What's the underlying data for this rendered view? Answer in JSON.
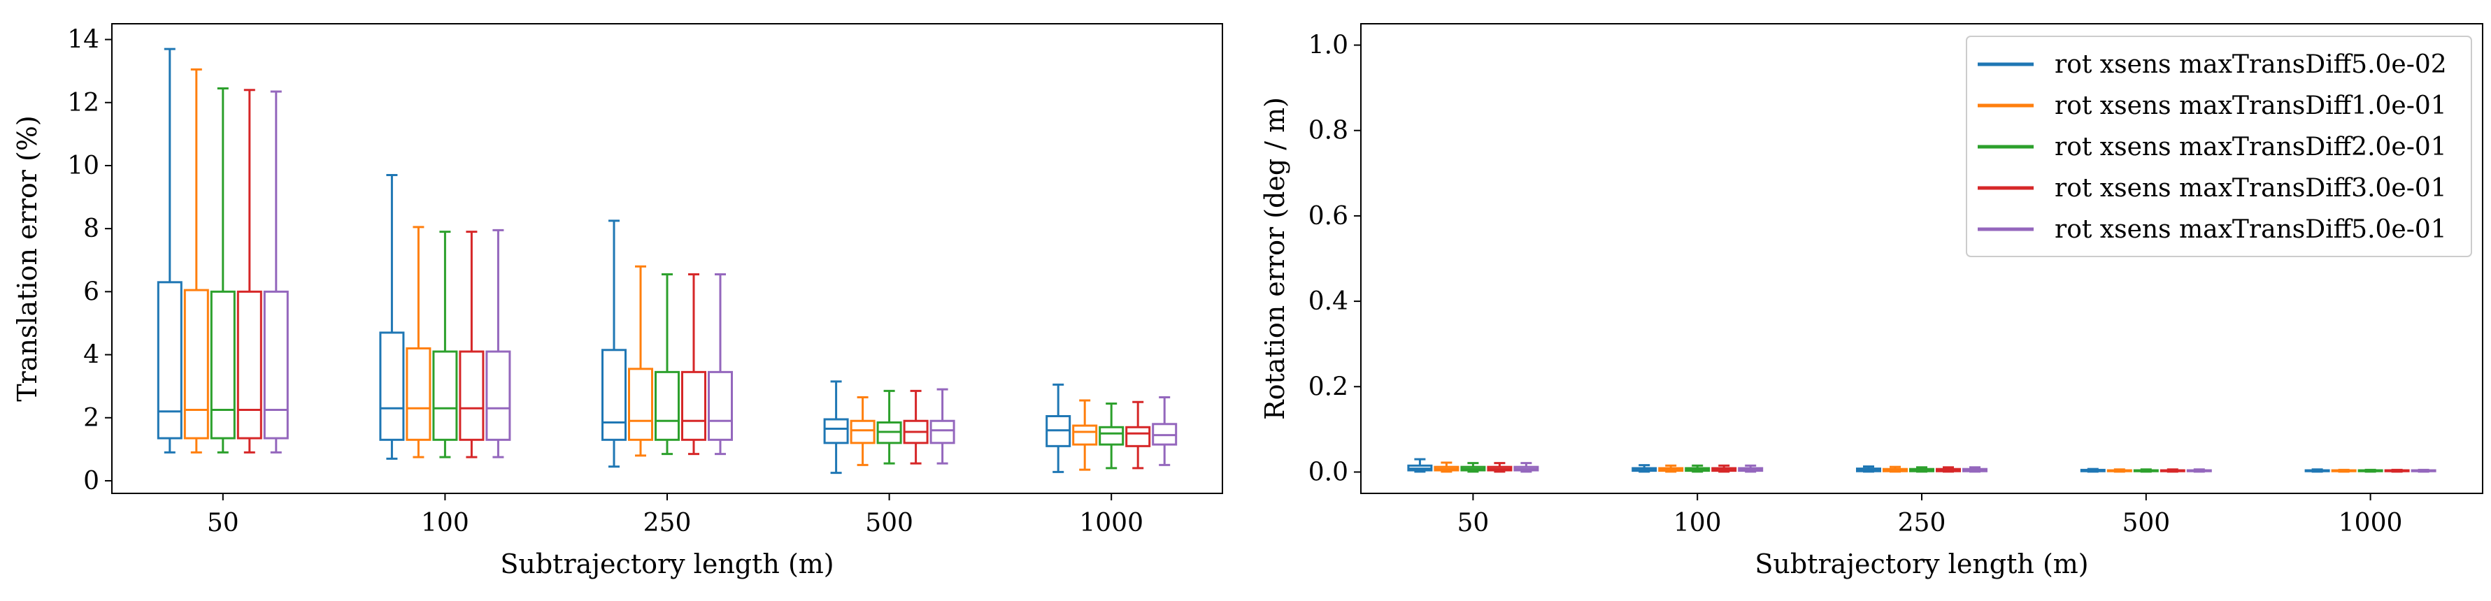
{
  "chart_data": [
    {
      "type": "box",
      "xlabel": "Subtrajectory length (m)",
      "ylabel": "Translation error (%)",
      "categories": [
        "50",
        "100",
        "250",
        "500",
        "1000"
      ],
      "ylim": [
        -0.4,
        14.5
      ],
      "yticks": [
        0,
        2,
        4,
        6,
        8,
        10,
        12,
        14
      ],
      "grid": false,
      "series": [
        {
          "color": "#1f77b4",
          "boxes": [
            {
              "whislo": 0.9,
              "q1": 1.35,
              "med": 2.2,
              "q3": 6.3,
              "whishi": 13.7
            },
            {
              "whislo": 0.7,
              "q1": 1.3,
              "med": 2.3,
              "q3": 4.7,
              "whishi": 9.7
            },
            {
              "whislo": 0.45,
              "q1": 1.3,
              "med": 1.85,
              "q3": 4.15,
              "whishi": 8.25
            },
            {
              "whislo": 0.25,
              "q1": 1.2,
              "med": 1.65,
              "q3": 1.95,
              "whishi": 3.15
            },
            {
              "whislo": 0.28,
              "q1": 1.1,
              "med": 1.6,
              "q3": 2.05,
              "whishi": 3.05
            }
          ]
        },
        {
          "color": "#ff7f0e",
          "boxes": [
            {
              "whislo": 0.9,
              "q1": 1.35,
              "med": 2.25,
              "q3": 6.05,
              "whishi": 13.05
            },
            {
              "whislo": 0.75,
              "q1": 1.3,
              "med": 2.3,
              "q3": 4.2,
              "whishi": 8.05
            },
            {
              "whislo": 0.8,
              "q1": 1.3,
              "med": 1.9,
              "q3": 3.55,
              "whishi": 6.8
            },
            {
              "whislo": 0.5,
              "q1": 1.2,
              "med": 1.6,
              "q3": 1.9,
              "whishi": 2.65
            },
            {
              "whislo": 0.35,
              "q1": 1.15,
              "med": 1.55,
              "q3": 1.75,
              "whishi": 2.55
            }
          ]
        },
        {
          "color": "#2ca02c",
          "boxes": [
            {
              "whislo": 0.9,
              "q1": 1.35,
              "med": 2.25,
              "q3": 6.0,
              "whishi": 12.45
            },
            {
              "whislo": 0.75,
              "q1": 1.3,
              "med": 2.3,
              "q3": 4.1,
              "whishi": 7.9
            },
            {
              "whislo": 0.85,
              "q1": 1.3,
              "med": 1.9,
              "q3": 3.45,
              "whishi": 6.55
            },
            {
              "whislo": 0.55,
              "q1": 1.2,
              "med": 1.55,
              "q3": 1.85,
              "whishi": 2.85
            },
            {
              "whislo": 0.4,
              "q1": 1.15,
              "med": 1.5,
              "q3": 1.7,
              "whishi": 2.45
            }
          ]
        },
        {
          "color": "#d62728",
          "boxes": [
            {
              "whislo": 0.9,
              "q1": 1.35,
              "med": 2.25,
              "q3": 6.0,
              "whishi": 12.4
            },
            {
              "whislo": 0.75,
              "q1": 1.3,
              "med": 2.3,
              "q3": 4.1,
              "whishi": 7.9
            },
            {
              "whislo": 0.85,
              "q1": 1.3,
              "med": 1.9,
              "q3": 3.45,
              "whishi": 6.55
            },
            {
              "whislo": 0.55,
              "q1": 1.2,
              "med": 1.55,
              "q3": 1.9,
              "whishi": 2.85
            },
            {
              "whislo": 0.4,
              "q1": 1.1,
              "med": 1.5,
              "q3": 1.7,
              "whishi": 2.5
            }
          ]
        },
        {
          "color": "#9467bd",
          "boxes": [
            {
              "whislo": 0.9,
              "q1": 1.35,
              "med": 2.25,
              "q3": 6.0,
              "whishi": 12.35
            },
            {
              "whislo": 0.75,
              "q1": 1.3,
              "med": 2.3,
              "q3": 4.1,
              "whishi": 7.95
            },
            {
              "whislo": 0.85,
              "q1": 1.3,
              "med": 1.9,
              "q3": 3.45,
              "whishi": 6.55
            },
            {
              "whislo": 0.55,
              "q1": 1.2,
              "med": 1.6,
              "q3": 1.9,
              "whishi": 2.9
            },
            {
              "whislo": 0.5,
              "q1": 1.15,
              "med": 1.45,
              "q3": 1.8,
              "whishi": 2.65
            }
          ]
        }
      ]
    },
    {
      "type": "box",
      "xlabel": "Subtrajectory length (m)",
      "ylabel": "Rotation error (deg / m)",
      "categories": [
        "50",
        "100",
        "250",
        "500",
        "1000"
      ],
      "ylim": [
        -0.05,
        1.05
      ],
      "yticks": [
        0.0,
        0.2,
        0.4,
        0.6,
        0.8,
        1.0
      ],
      "grid": false,
      "legend_position": "top-right",
      "series": [
        {
          "name": "rot xsens maxTransDiff5.0e-02",
          "color": "#1f77b4",
          "boxes": [
            {
              "whislo": 0.001,
              "q1": 0.004,
              "med": 0.008,
              "q3": 0.015,
              "whishi": 0.03
            },
            {
              "whislo": 0.001,
              "q1": 0.003,
              "med": 0.006,
              "q3": 0.009,
              "whishi": 0.016
            },
            {
              "whislo": 0.001,
              "q1": 0.002,
              "med": 0.005,
              "q3": 0.008,
              "whishi": 0.013
            },
            {
              "whislo": 0.001,
              "q1": 0.002,
              "med": 0.003,
              "q3": 0.005,
              "whishi": 0.007
            },
            {
              "whislo": 0.001,
              "q1": 0.002,
              "med": 0.003,
              "q3": 0.004,
              "whishi": 0.006
            }
          ]
        },
        {
          "name": "rot xsens maxTransDiff1.0e-01",
          "color": "#ff7f0e",
          "boxes": [
            {
              "whislo": 0.001,
              "q1": 0.004,
              "med": 0.007,
              "q3": 0.012,
              "whishi": 0.022
            },
            {
              "whislo": 0.001,
              "q1": 0.003,
              "med": 0.006,
              "q3": 0.009,
              "whishi": 0.015
            },
            {
              "whislo": 0.001,
              "q1": 0.002,
              "med": 0.005,
              "q3": 0.007,
              "whishi": 0.012
            },
            {
              "whislo": 0.001,
              "q1": 0.002,
              "med": 0.003,
              "q3": 0.004,
              "whishi": 0.006
            },
            {
              "whislo": 0.001,
              "q1": 0.002,
              "med": 0.003,
              "q3": 0.004,
              "whishi": 0.005
            }
          ]
        },
        {
          "name": "rot xsens maxTransDiff2.0e-01",
          "color": "#2ca02c",
          "boxes": [
            {
              "whislo": 0.001,
              "q1": 0.004,
              "med": 0.007,
              "q3": 0.012,
              "whishi": 0.021
            },
            {
              "whislo": 0.001,
              "q1": 0.003,
              "med": 0.006,
              "q3": 0.009,
              "whishi": 0.015
            },
            {
              "whislo": 0.001,
              "q1": 0.002,
              "med": 0.005,
              "q3": 0.007,
              "whishi": 0.011
            },
            {
              "whislo": 0.001,
              "q1": 0.002,
              "med": 0.003,
              "q3": 0.004,
              "whishi": 0.006
            },
            {
              "whislo": 0.001,
              "q1": 0.002,
              "med": 0.003,
              "q3": 0.004,
              "whishi": 0.005
            }
          ]
        },
        {
          "name": "rot xsens maxTransDiff3.0e-01",
          "color": "#d62728",
          "boxes": [
            {
              "whislo": 0.001,
              "q1": 0.004,
              "med": 0.007,
              "q3": 0.012,
              "whishi": 0.021
            },
            {
              "whislo": 0.001,
              "q1": 0.003,
              "med": 0.006,
              "q3": 0.009,
              "whishi": 0.015
            },
            {
              "whislo": 0.001,
              "q1": 0.002,
              "med": 0.005,
              "q3": 0.007,
              "whishi": 0.011
            },
            {
              "whislo": 0.001,
              "q1": 0.002,
              "med": 0.003,
              "q3": 0.004,
              "whishi": 0.006
            },
            {
              "whislo": 0.001,
              "q1": 0.002,
              "med": 0.003,
              "q3": 0.004,
              "whishi": 0.005
            }
          ]
        },
        {
          "name": "rot xsens maxTransDiff5.0e-01",
          "color": "#9467bd",
          "boxes": [
            {
              "whislo": 0.001,
              "q1": 0.004,
              "med": 0.007,
              "q3": 0.012,
              "whishi": 0.021
            },
            {
              "whislo": 0.001,
              "q1": 0.003,
              "med": 0.006,
              "q3": 0.009,
              "whishi": 0.015
            },
            {
              "whislo": 0.001,
              "q1": 0.002,
              "med": 0.005,
              "q3": 0.007,
              "whishi": 0.011
            },
            {
              "whislo": 0.001,
              "q1": 0.002,
              "med": 0.003,
              "q3": 0.004,
              "whishi": 0.006
            },
            {
              "whislo": 0.001,
              "q1": 0.002,
              "med": 0.003,
              "q3": 0.004,
              "whishi": 0.005
            }
          ]
        }
      ]
    }
  ]
}
